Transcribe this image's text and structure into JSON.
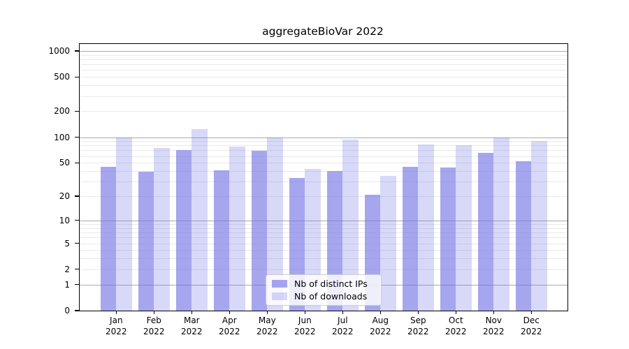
{
  "title": "aggregateBioVar 2022",
  "chart_data": {
    "type": "bar",
    "title": "aggregateBioVar 2022",
    "categories": [
      "Jan",
      "Feb",
      "Mar",
      "Apr",
      "May",
      "Jun",
      "Jul",
      "Aug",
      "Sep",
      "Oct",
      "Nov",
      "Dec"
    ],
    "year_label": "2022",
    "series": [
      {
        "name": "Nb of distinct IPs",
        "color": "rgba(112,112,228,0.62)",
        "values": [
          45,
          39,
          70,
          41,
          69,
          33,
          40,
          21,
          45,
          44,
          65,
          52
        ]
      },
      {
        "name": "Nb of downloads",
        "color": "rgba(112,112,228,0.27)",
        "values": [
          100,
          75,
          124,
          78,
          100,
          42,
          93,
          35,
          82,
          80,
          100,
          90
        ]
      }
    ],
    "y_ticks": [
      0,
      1,
      2,
      5,
      10,
      20,
      50,
      100,
      200,
      500,
      1000
    ],
    "y_scale": "log10(1+x)",
    "ylim": [
      0,
      1200
    ],
    "grid": true,
    "legend_position": "bottom-center",
    "colors": {
      "distinct_ips_bar": "#a6a6ee",
      "downloads_bar": "#d8d8f8",
      "major_gridline": "#ababab",
      "minor_gridline": "#e9e9e9",
      "axis": "#000000"
    }
  }
}
